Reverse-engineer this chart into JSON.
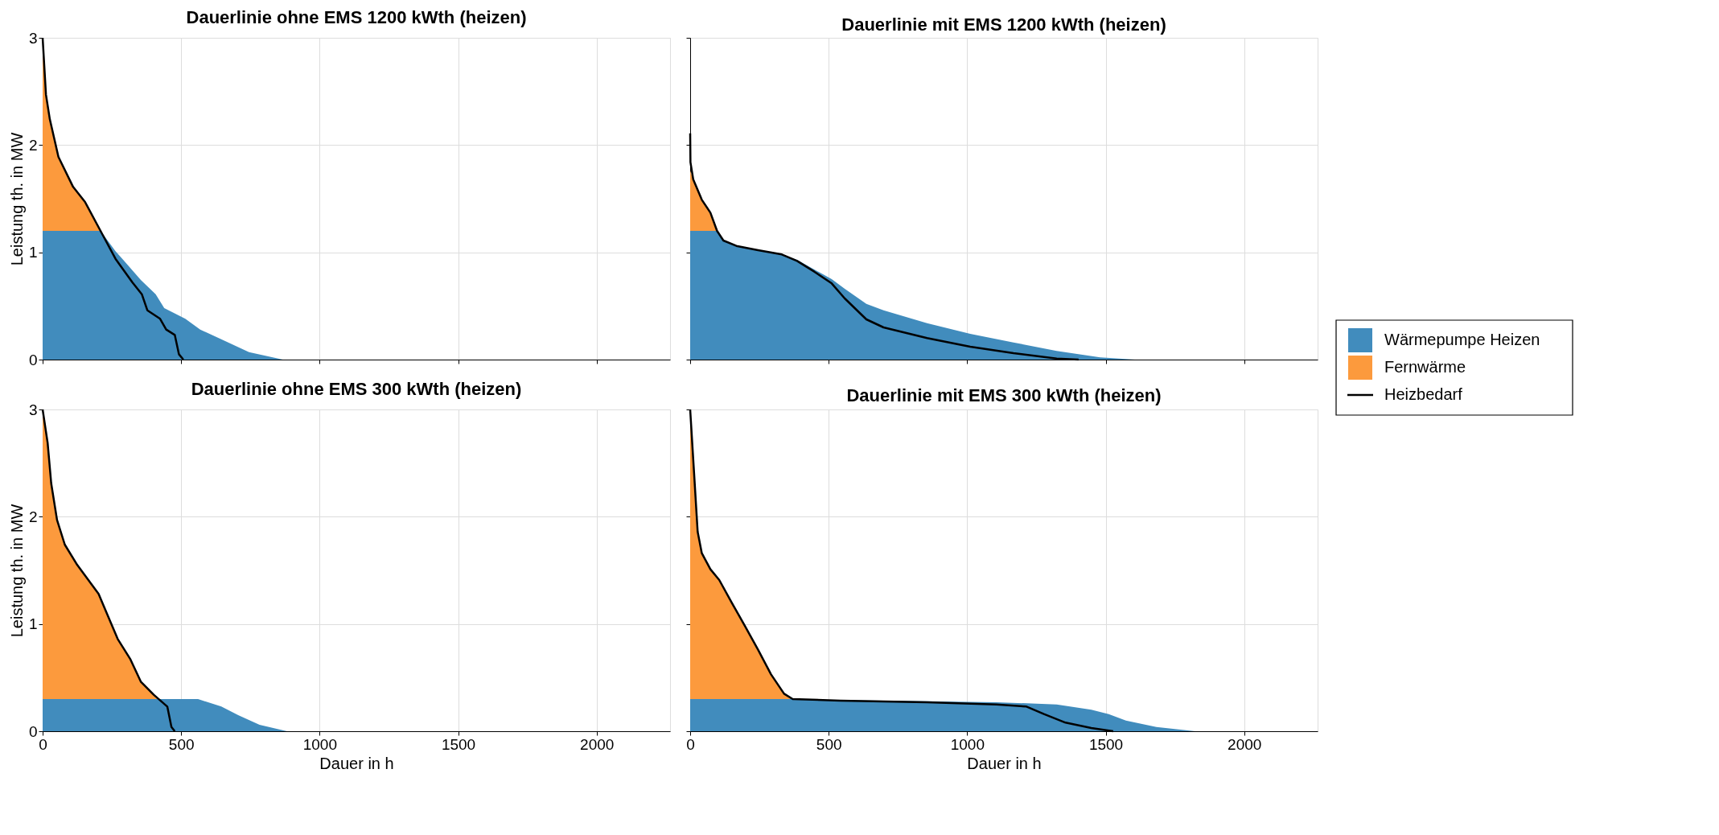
{
  "chart_data": [
    {
      "type": "area",
      "stacked": true,
      "title": "Dauerlinie ohne EMS 1200 kWth (heizen)",
      "ylabel": "Leistung th. in MW",
      "xlim": [
        0,
        2265
      ],
      "ylim": [
        0,
        3
      ],
      "xticks": [
        0,
        500,
        1000,
        1500,
        2000
      ],
      "yticks": [
        0,
        1,
        2,
        3
      ],
      "grid": true,
      "tick_labels": "y",
      "legend": "right",
      "series": [
        {
          "name": "Wärmepumpe Heizen",
          "color": "#418cbd",
          "x": [
            0,
            12,
            26,
            57,
            110,
            153,
            209,
            263,
            294,
            355,
            408,
            439,
            515,
            569,
            645,
            745,
            867
          ],
          "values": [
            1.2,
            1.2,
            1.2,
            1.2,
            1.2,
            1.2,
            1.2,
            1.01,
            0.92,
            0.74,
            0.61,
            0.48,
            0.38,
            0.28,
            0.19,
            0.07,
            0
          ]
        },
        {
          "name": "Fernwärme",
          "color": "#fc9a3d",
          "x": [
            0,
            12,
            26,
            57,
            110,
            153,
            209,
            263,
            294,
            355,
            408,
            439,
            515,
            569,
            645,
            745,
            867
          ],
          "values": [
            1.8,
            1.27,
            1.04,
            0.69,
            0.41,
            0.27,
            0,
            0,
            0,
            0,
            0,
            0,
            0,
            0,
            0,
            0,
            0
          ]
        },
        {
          "name": "Heizbedarf",
          "type": "line",
          "color": "#000000",
          "x": [
            0,
            12,
            26,
            57,
            110,
            153,
            209,
            263,
            324,
            358,
            378,
            424,
            446,
            477,
            492,
            508
          ],
          "values": [
            3.0,
            2.47,
            2.24,
            1.89,
            1.61,
            1.47,
            1.2,
            0.94,
            0.72,
            0.61,
            0.46,
            0.38,
            0.28,
            0.23,
            0.05,
            0
          ]
        }
      ]
    },
    {
      "type": "area",
      "stacked": true,
      "title": "Dauerlinie mit EMS 1200 kWth (heizen)",
      "xlim": [
        0,
        2265
      ],
      "ylim": [
        0,
        3
      ],
      "xticks": [
        0,
        500,
        1000,
        1500,
        2000
      ],
      "yticks": [
        0,
        1,
        2,
        3
      ],
      "grid": true,
      "tick_labels": false,
      "series": [
        {
          "name": "Wärmepumpe Heizen",
          "color": "#418cbd",
          "x": [
            0,
            11,
            42,
            73,
            97,
            120,
            167,
            245,
            331,
            386,
            448,
            511,
            558,
            636,
            698,
            855,
            1011,
            1167,
            1323,
            1480,
            1605
          ],
          "values": [
            1.2,
            1.2,
            1.2,
            1.2,
            1.2,
            1.11,
            1.06,
            1.02,
            0.98,
            0.93,
            0.84,
            0.75,
            0.66,
            0.52,
            0.46,
            0.34,
            0.24,
            0.16,
            0.08,
            0.02,
            0
          ]
        },
        {
          "name": "Fernwärme",
          "color": "#fc9a3d",
          "x": [
            0,
            11,
            42,
            73,
            97,
            120,
            167,
            245,
            331,
            386,
            448,
            511,
            558,
            636,
            698,
            855,
            1011,
            1167,
            1323,
            1480,
            1605
          ],
          "values": [
            0.56,
            0.48,
            0.29,
            0.17,
            0,
            0,
            0,
            0,
            0,
            0,
            0,
            0,
            0,
            0,
            0,
            0,
            0,
            0,
            0,
            0,
            0
          ]
        },
        {
          "name": "Heizbedarf",
          "type": "line",
          "color": "#000000",
          "x": [
            0,
            1,
            11,
            42,
            73,
            97,
            120,
            167,
            245,
            331,
            386,
            448,
            511,
            558,
            636,
            698,
            855,
            1011,
            1167,
            1323,
            1402
          ],
          "values": [
            2.11,
            1.84,
            1.68,
            1.49,
            1.37,
            1.2,
            1.11,
            1.06,
            1.02,
            0.98,
            0.92,
            0.82,
            0.71,
            0.57,
            0.375,
            0.3,
            0.2,
            0.12,
            0.06,
            0.01,
            0
          ]
        }
      ]
    },
    {
      "type": "area",
      "stacked": true,
      "title": "Dauerlinie ohne EMS 300 kWth (heizen)",
      "xlabel": "Dauer in h",
      "ylabel": "Leistung th. in MW",
      "xlim": [
        0,
        2265
      ],
      "ylim": [
        0,
        3
      ],
      "xticks": [
        0,
        500,
        1000,
        1500,
        2000
      ],
      "yticks": [
        0,
        1,
        2,
        3
      ],
      "grid": true,
      "series": [
        {
          "name": "Wärmepumpe Heizen",
          "color": "#418cbd",
          "x": [
            0,
            18,
            31,
            52,
            80,
            125,
            202,
            271,
            317,
            355,
            401,
            420,
            561,
            645,
            706,
            783,
            882,
            2159
          ],
          "values": [
            0.3,
            0.3,
            0.3,
            0.3,
            0.3,
            0.3,
            0.3,
            0.3,
            0.3,
            0.3,
            0.3,
            0.3,
            0.3,
            0.23,
            0.15,
            0.06,
            0,
            0
          ]
        },
        {
          "name": "Fernwärme",
          "color": "#fc9a3d",
          "x": [
            0,
            18,
            31,
            52,
            80,
            125,
            202,
            271,
            317,
            355,
            401,
            420,
            561,
            645,
            706,
            783,
            882,
            2159
          ],
          "values": [
            2.7,
            2.39,
            2.01,
            1.67,
            1.44,
            1.25,
            0.98,
            0.56,
            0.37,
            0.16,
            0.04,
            0,
            0,
            0,
            0,
            0,
            0,
            0
          ]
        },
        {
          "name": "Heizbedarf",
          "type": "line",
          "color": "#000000",
          "x": [
            0,
            18,
            31,
            52,
            80,
            125,
            202,
            271,
            317,
            355,
            401,
            450,
            465,
            477
          ],
          "values": [
            3.0,
            2.69,
            2.31,
            1.97,
            1.74,
            1.55,
            1.28,
            0.86,
            0.67,
            0.46,
            0.34,
            0.23,
            0.04,
            0
          ]
        }
      ]
    },
    {
      "type": "area",
      "stacked": true,
      "title": "Dauerlinie mit EMS 300 kWth (heizen)",
      "xlabel": "Dauer in h",
      "xlim": [
        0,
        2265
      ],
      "ylim": [
        0,
        3
      ],
      "xticks": [
        0,
        500,
        1000,
        1500,
        2000
      ],
      "yticks": [
        0,
        1,
        2,
        3
      ],
      "grid": true,
      "tick_labels": "x",
      "series": [
        {
          "name": "Wärmepumpe Heizen",
          "color": "#418cbd",
          "x": [
            0,
            14,
            27,
            42,
            73,
            105,
            152,
            198,
            245,
            292,
            339,
            370,
            542,
            855,
            1105,
            1323,
            1448,
            1511,
            1573,
            1683,
            1823,
            2152
          ],
          "values": [
            0.3,
            0.3,
            0.3,
            0.3,
            0.3,
            0.3,
            0.3,
            0.3,
            0.3,
            0.3,
            0.3,
            0.3,
            0.29,
            0.28,
            0.27,
            0.25,
            0.2,
            0.16,
            0.1,
            0.04,
            0,
            0
          ]
        },
        {
          "name": "Fernwärme",
          "color": "#fc9a3d",
          "x": [
            0,
            14,
            27,
            42,
            73,
            105,
            152,
            198,
            245,
            292,
            339,
            370,
            542,
            855,
            1105,
            1323,
            1448,
            1511,
            1573,
            1683,
            1823,
            2152
          ],
          "values": [
            2.7,
            2.11,
            1.56,
            1.36,
            1.21,
            1.11,
            0.89,
            0.68,
            0.46,
            0.23,
            0.05,
            0,
            0,
            0,
            0,
            0,
            0,
            0,
            0,
            0,
            0,
            0
          ]
        },
        {
          "name": "Heizbedarf",
          "type": "line",
          "color": "#000000",
          "x": [
            0,
            14,
            27,
            42,
            73,
            105,
            152,
            198,
            245,
            292,
            339,
            370,
            542,
            855,
            1105,
            1214,
            1277,
            1355,
            1448,
            1527
          ],
          "values": [
            3.0,
            2.41,
            1.86,
            1.66,
            1.51,
            1.41,
            1.19,
            0.98,
            0.76,
            0.53,
            0.35,
            0.3,
            0.285,
            0.27,
            0.25,
            0.23,
            0.16,
            0.08,
            0.03,
            0
          ]
        }
      ]
    }
  ]
}
